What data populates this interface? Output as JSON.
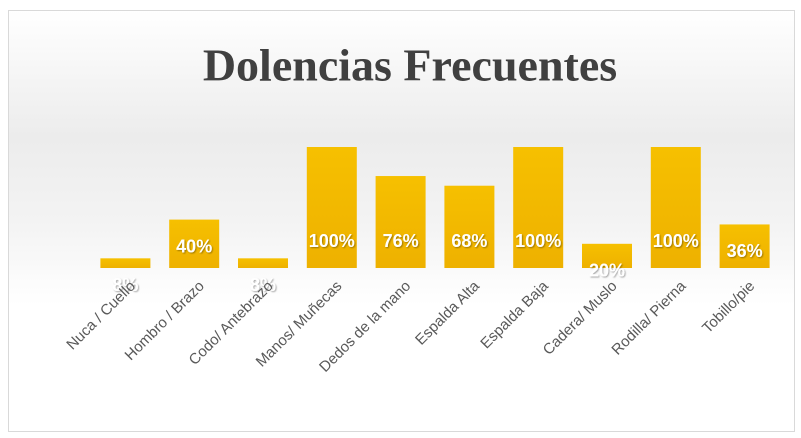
{
  "chart_data": {
    "type": "bar",
    "title": "Dolencias Frecuentes",
    "categories": [
      "Nuca / Cuello",
      "Hombro / Brazo",
      "Codo/ Antebrazo",
      "Manos/ Muñecas",
      "Dedos de la mano",
      "Espalda Alta",
      "Espalda Baja",
      "Cadera/ Muslo",
      "Rodilla/ Pierna",
      "Tobillo/pie"
    ],
    "values": [
      8,
      40,
      8,
      100,
      76,
      68,
      100,
      20,
      100,
      36
    ],
    "value_labels": [
      "8%",
      "40%",
      "8%",
      "100%",
      "76%",
      "68%",
      "100%",
      "20%",
      "100%",
      "36%"
    ],
    "color": "#f2b800",
    "ylim": [
      0,
      100
    ]
  }
}
